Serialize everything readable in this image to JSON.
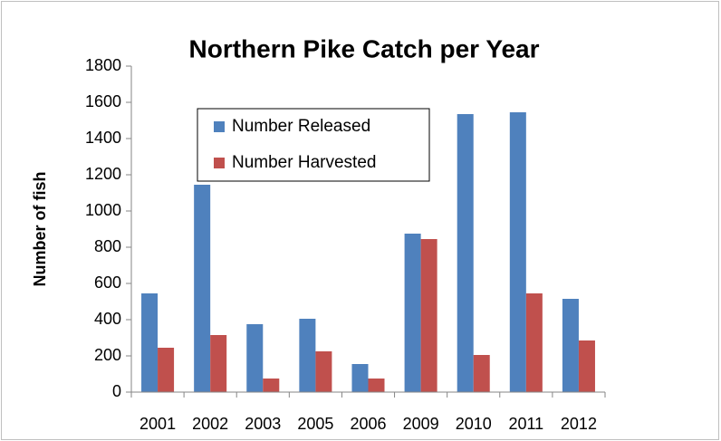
{
  "chart_data": {
    "type": "bar",
    "title": "Northern Pike Catch per Year",
    "y_label": "Number of fish",
    "categories": [
      "2001",
      "2002",
      "2003",
      "2005",
      "2006",
      "2009",
      "2010",
      "2011",
      "2012"
    ],
    "series": [
      {
        "name": "Number Released",
        "color": "#4f81bd",
        "values": [
          545,
          1145,
          375,
          405,
          155,
          875,
          1535,
          1545,
          515
        ]
      },
      {
        "name": "Number Harvested",
        "color": "#c0504d",
        "values": [
          245,
          315,
          75,
          225,
          75,
          845,
          205,
          545,
          285
        ]
      }
    ],
    "ylim": [
      0,
      1800
    ],
    "yticks": [
      0,
      200,
      400,
      600,
      800,
      1000,
      1200,
      1400,
      1600,
      1800
    ],
    "grid": false,
    "legend": "upper left"
  }
}
